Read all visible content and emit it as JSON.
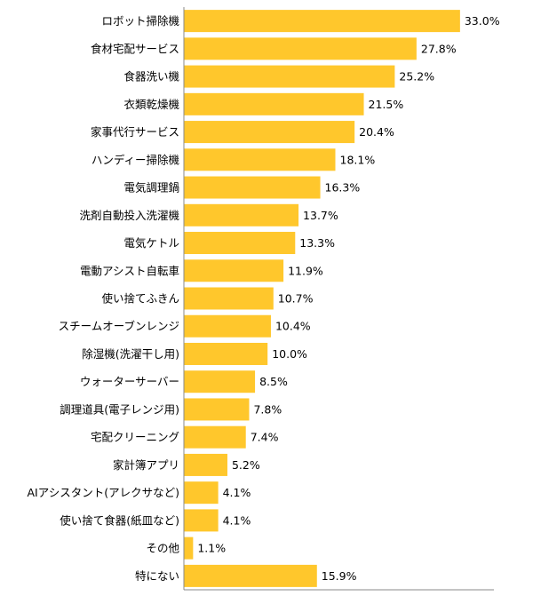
{
  "chart_data": {
    "type": "bar",
    "orientation": "horizontal",
    "categories": [
      "ロボット掃除機",
      "食材宅配サービス",
      "食器洗い機",
      "衣類乾燥機",
      "家事代行サービス",
      "ハンディー掃除機",
      "電気調理鍋",
      "洗剤自動投入洗濯機",
      "電気ケトル",
      "電動アシスト自転車",
      "使い捨てふきん",
      "スチームオーブンレンジ",
      "除湿機(洗濯干し用)",
      "ウォーターサーバー",
      "調理道具(電子レンジ用)",
      "宅配クリーニング",
      "家計簿アプリ",
      "AIアシスタント(アレクサなど)",
      "使い捨て食器(紙皿など)",
      "その他",
      "特にない"
    ],
    "values": [
      33.0,
      27.8,
      25.2,
      21.5,
      20.4,
      18.1,
      16.3,
      13.7,
      13.3,
      11.9,
      10.7,
      10.4,
      10.0,
      8.5,
      7.8,
      7.4,
      5.2,
      4.1,
      4.1,
      1.1,
      15.9
    ],
    "value_labels": [
      "33.0%",
      "27.8%",
      "25.2%",
      "21.5%",
      "20.4%",
      "18.1%",
      "16.3%",
      "13.7%",
      "13.3%",
      "11.9%",
      "10.7%",
      "10.4%",
      "10.0%",
      "8.5%",
      "7.8%",
      "7.4%",
      "5.2%",
      "4.1%",
      "4.1%",
      "1.1%",
      "15.9%"
    ],
    "unit": "%",
    "xlim": [
      0,
      37
    ],
    "grid": false,
    "legend": "none",
    "bar_color": "#FFC72C",
    "axis_color": "#888888"
  }
}
